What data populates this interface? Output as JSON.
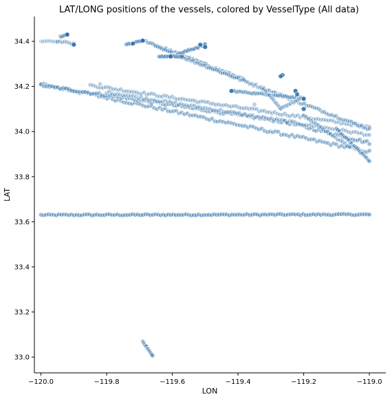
{
  "chart_data": {
    "type": "scatter",
    "title": "LAT/LONG positions of the vessels, colored by VesselType (All data)",
    "xlabel": "LON",
    "ylabel": "LAT",
    "xlim": [
      -120.02,
      -118.95
    ],
    "ylim": [
      32.93,
      34.51
    ],
    "xticks": [
      -120.0,
      -119.8,
      -119.6,
      -119.4,
      -119.2,
      -119.0
    ],
    "xtick_labels": [
      "−120.0",
      "−119.8",
      "−119.6",
      "−119.4",
      "−119.2",
      "−119.0"
    ],
    "yticks": [
      33.0,
      33.2,
      33.4,
      33.6,
      33.8,
      34.0,
      34.2,
      34.4
    ],
    "ytick_labels": [
      "33.0",
      "33.2",
      "33.4",
      "33.6",
      "33.8",
      "34.0",
      "34.2",
      "34.4"
    ],
    "grid": false,
    "marker_color": "#2b6ea8",
    "series": [
      {
        "tracks": [
          {
            "from": [
              -120.0,
              33.63
            ],
            "to": [
              -119.0,
              33.632
            ],
            "n": 130,
            "opacity": 0.5,
            "jitter": 0.003
          },
          {
            "from": [
              -120.0,
              34.21
            ],
            "to": [
              -119.0,
              33.91
            ],
            "n": 120,
            "opacity": 0.45,
            "jitter": 0.006
          },
          {
            "from": [
              -120.0,
              34.205
            ],
            "to": [
              -119.25,
              34.04
            ],
            "n": 90,
            "opacity": 0.45,
            "jitter": 0.005
          },
          {
            "from": [
              -119.25,
              34.04
            ],
            "to": [
              -119.0,
              33.95
            ],
            "n": 35,
            "opacity": 0.45,
            "jitter": 0.006
          },
          {
            "from": [
              -119.85,
              34.205
            ],
            "to": [
              -119.0,
              34.02
            ],
            "n": 110,
            "opacity": 0.35,
            "jitter": 0.005
          },
          {
            "from": [
              -119.8,
              34.175
            ],
            "to": [
              -119.0,
              33.985
            ],
            "n": 100,
            "opacity": 0.35,
            "jitter": 0.005
          },
          {
            "from": [
              -119.1,
              34.01
            ],
            "to": [
              -119.0,
              33.87
            ],
            "n": 25,
            "opacity": 0.45,
            "jitter": 0.004
          },
          {
            "from": [
              -119.2,
              34.07
            ],
            "to": [
              -119.06,
              33.93
            ],
            "n": 20,
            "opacity": 0.4,
            "jitter": 0.004
          },
          {
            "from": [
              -119.68,
              34.4
            ],
            "to": [
              -119.38,
              34.23
            ],
            "n": 60,
            "opacity": 0.4,
            "jitter": 0.004
          },
          {
            "from": [
              -119.65,
              34.375
            ],
            "to": [
              -119.0,
              34.01
            ],
            "n": 110,
            "opacity": 0.38,
            "jitter": 0.005
          },
          {
            "from": [
              -119.6,
              34.335
            ],
            "to": [
              -119.5,
              34.385
            ],
            "n": 25,
            "opacity": 0.55,
            "jitter": 0.003
          },
          {
            "from": [
              -119.64,
              34.333
            ],
            "to": [
              -119.57,
              34.333
            ],
            "n": 15,
            "opacity": 0.6,
            "jitter": 0.002
          },
          {
            "from": [
              -119.74,
              34.385
            ],
            "to": [
              -119.69,
              34.403
            ],
            "n": 12,
            "opacity": 0.6,
            "jitter": 0.002
          },
          {
            "from": [
              -119.42,
              34.18
            ],
            "to": [
              -119.21,
              34.15
            ],
            "n": 40,
            "opacity": 0.45,
            "jitter": 0.003
          },
          {
            "from": [
              -119.33,
              34.2
            ],
            "to": [
              -119.27,
              34.1
            ],
            "n": 15,
            "opacity": 0.35,
            "jitter": 0.004
          },
          {
            "from": [
              -119.27,
              34.105
            ],
            "to": [
              -119.2,
              34.15
            ],
            "n": 15,
            "opacity": 0.35,
            "jitter": 0.004
          },
          {
            "from": [
              -120.0,
              34.4
            ],
            "to": [
              -119.95,
              34.4
            ],
            "n": 10,
            "opacity": 0.25,
            "jitter": 0.002
          },
          {
            "from": [
              -119.95,
              34.4
            ],
            "to": [
              -119.9,
              34.39
            ],
            "n": 8,
            "opacity": 0.35,
            "jitter": 0.003
          },
          {
            "from": [
              -119.94,
              34.42
            ],
            "to": [
              -119.92,
              34.43
            ],
            "n": 6,
            "opacity": 0.6,
            "jitter": 0.002
          },
          {
            "from": [
              -119.69,
              33.07
            ],
            "to": [
              -119.66,
              33.005
            ],
            "n": 14,
            "opacity": 0.45,
            "jitter": 0.002
          }
        ],
        "points": [
          {
            "x": -119.92,
            "y": 34.43,
            "opacity": 0.9
          },
          {
            "x": -119.9,
            "y": 34.385,
            "opacity": 0.9
          },
          {
            "x": -119.69,
            "y": 34.403,
            "opacity": 0.9
          },
          {
            "x": -119.72,
            "y": 34.39,
            "opacity": 0.8
          },
          {
            "x": -119.605,
            "y": 34.333,
            "opacity": 0.9
          },
          {
            "x": -119.5,
            "y": 34.375,
            "opacity": 0.9
          },
          {
            "x": -119.515,
            "y": 34.385,
            "opacity": 0.85
          },
          {
            "x": -119.265,
            "y": 34.25,
            "opacity": 0.9
          },
          {
            "x": -119.27,
            "y": 34.245,
            "opacity": 0.8
          },
          {
            "x": -119.225,
            "y": 34.18,
            "opacity": 0.9
          },
          {
            "x": -119.22,
            "y": 34.165,
            "opacity": 0.85
          },
          {
            "x": -119.2,
            "y": 34.145,
            "opacity": 0.9
          },
          {
            "x": -119.2,
            "y": 34.1,
            "opacity": 0.9
          },
          {
            "x": -119.42,
            "y": 34.18,
            "opacity": 0.85
          },
          {
            "x": -119.82,
            "y": 34.21,
            "opacity": 0.3
          },
          {
            "x": -119.35,
            "y": 34.12,
            "opacity": 0.3
          }
        ]
      }
    ]
  }
}
